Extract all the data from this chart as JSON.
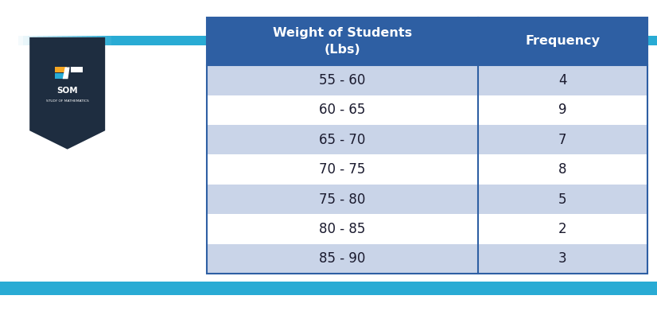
{
  "col1_header": "Weight of Students\n(Lbs)",
  "col2_header": "Frequency",
  "rows": [
    [
      "55 - 60",
      "4"
    ],
    [
      "60 - 65",
      "9"
    ],
    [
      "65 - 70",
      "7"
    ],
    [
      "70 - 75",
      "8"
    ],
    [
      "75 - 80",
      "5"
    ],
    [
      "80 - 85",
      "2"
    ],
    [
      "85 - 90",
      "3"
    ]
  ],
  "header_bg": "#2E5FA3",
  "header_text_color": "#FFFFFF",
  "row_bg_odd": "#C9D4E8",
  "row_bg_even": "#FFFFFF",
  "row_text_color": "#1a1a2e",
  "background_color": "#FFFFFF",
  "stripe_color": "#29ABD4",
  "logo_bg": "#1e2d40",
  "table_border_color": "#2E5FA3",
  "figsize": [
    8.26,
    3.91
  ],
  "dpi": 100
}
